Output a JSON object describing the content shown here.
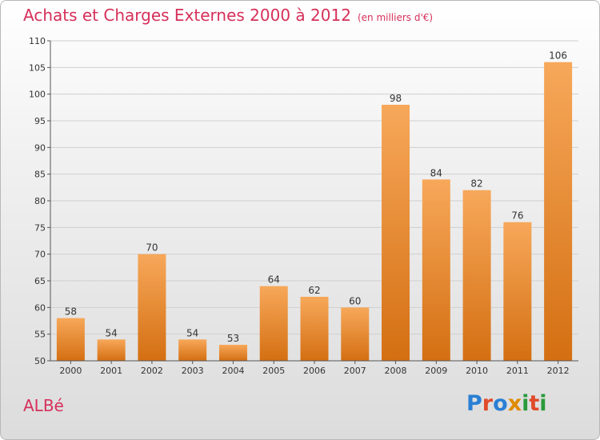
{
  "title": "Achats et Charges Externes 2000 à 2012",
  "unit": "(en milliers d'€)",
  "location": "ALBé",
  "logo": {
    "letters": [
      {
        "ch": "P",
        "color": "#2a7fd4"
      },
      {
        "ch": "r",
        "color": "#e04a2a"
      },
      {
        "ch": "o",
        "color": "#2a7fd4"
      },
      {
        "ch": "x",
        "color": "#e08a00"
      },
      {
        "ch": "i",
        "color": "#2a9a3a"
      },
      {
        "ch": "t",
        "color": "#e04a2a"
      },
      {
        "ch": "i",
        "color": "#2a9a3a"
      }
    ]
  },
  "colors": {
    "bar_top": "#f7a85a",
    "bar_bottom": "#d46f12",
    "grid": "#cfcfcf",
    "axis": "#555555",
    "accent": "#d6305a"
  },
  "chart_data": {
    "type": "bar",
    "title": "Achats et Charges Externes 2000 à 2012",
    "categories": [
      "2000",
      "2001",
      "2002",
      "2003",
      "2004",
      "2005",
      "2006",
      "2007",
      "2008",
      "2009",
      "2010",
      "2011",
      "2012"
    ],
    "values": [
      58,
      54,
      70,
      54,
      53,
      64,
      62,
      60,
      98,
      84,
      82,
      76,
      106
    ],
    "ylim": [
      50,
      110
    ],
    "yticks": [
      50,
      55,
      60,
      65,
      70,
      75,
      80,
      85,
      90,
      95,
      100,
      105,
      110
    ],
    "grid": true,
    "xlabel": "",
    "ylabel": ""
  }
}
